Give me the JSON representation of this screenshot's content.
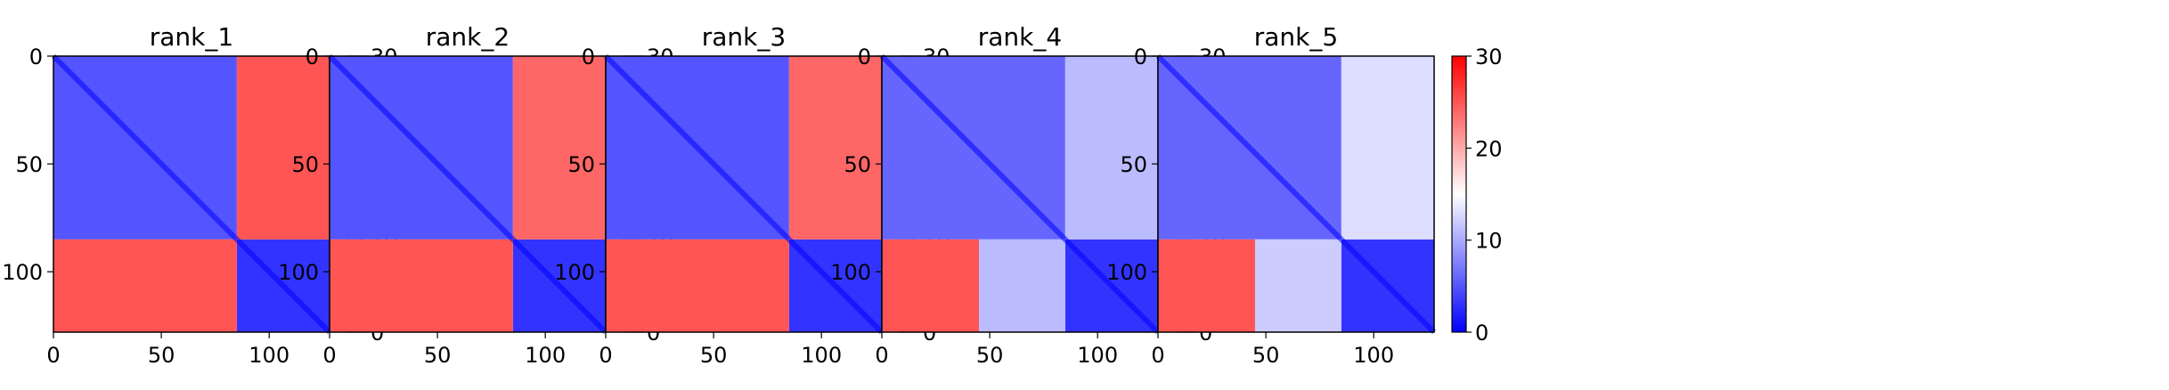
{
  "chart_data": [
    {
      "type": "heatmap",
      "title": "rank_1",
      "matrix_size": 128,
      "x_ticks": [
        0,
        50,
        100
      ],
      "y_ticks": [
        0,
        50,
        100
      ],
      "colorbar": {
        "ticks": [
          0,
          10,
          20,
          30
        ],
        "range": [
          0,
          30
        ],
        "colormap": "bwr"
      },
      "blocks": [
        {
          "rows": [
            0,
            85
          ],
          "cols": [
            0,
            85
          ],
          "approx_value": 5
        },
        {
          "rows": [
            85,
            128
          ],
          "cols": [
            85,
            128
          ],
          "approx_value": 3
        },
        {
          "rows": [
            0,
            85
          ],
          "cols": [
            85,
            128
          ],
          "approx_value": 25
        },
        {
          "rows": [
            85,
            128
          ],
          "cols": [
            0,
            85
          ],
          "approx_value": 25
        }
      ]
    },
    {
      "type": "heatmap",
      "title": "rank_2",
      "matrix_size": 128,
      "x_ticks": [
        0,
        50,
        100
      ],
      "y_ticks": [
        0,
        50,
        100
      ],
      "colorbar": {
        "ticks": [
          0,
          10,
          20,
          30
        ],
        "range": [
          0,
          30
        ],
        "colormap": "bwr"
      },
      "blocks": [
        {
          "rows": [
            0,
            85
          ],
          "cols": [
            0,
            85
          ],
          "approx_value": 5
        },
        {
          "rows": [
            85,
            128
          ],
          "cols": [
            85,
            128
          ],
          "approx_value": 3
        },
        {
          "rows": [
            0,
            85
          ],
          "cols": [
            85,
            128
          ],
          "approx_value": 24
        },
        {
          "rows": [
            85,
            128
          ],
          "cols": [
            0,
            85
          ],
          "approx_value": 25
        }
      ]
    },
    {
      "type": "heatmap",
      "title": "rank_3",
      "matrix_size": 128,
      "x_ticks": [
        0,
        50,
        100
      ],
      "y_ticks": [
        0,
        50,
        100
      ],
      "colorbar": {
        "ticks": [
          0,
          10,
          20,
          30
        ],
        "range": [
          0,
          30
        ],
        "colormap": "bwr"
      },
      "blocks": [
        {
          "rows": [
            0,
            85
          ],
          "cols": [
            0,
            85
          ],
          "approx_value": 5
        },
        {
          "rows": [
            85,
            128
          ],
          "cols": [
            85,
            128
          ],
          "approx_value": 3
        },
        {
          "rows": [
            0,
            85
          ],
          "cols": [
            85,
            128
          ],
          "approx_value": 24
        },
        {
          "rows": [
            85,
            128
          ],
          "cols": [
            0,
            85
          ],
          "approx_value": 25
        }
      ]
    },
    {
      "type": "heatmap",
      "title": "rank_4",
      "matrix_size": 128,
      "x_ticks": [
        0,
        50,
        100
      ],
      "y_ticks": [
        0,
        50,
        100
      ],
      "colorbar": {
        "ticks": [
          0,
          10,
          20,
          30
        ],
        "range": [
          0,
          30
        ],
        "colormap": "bwr"
      },
      "blocks": [
        {
          "rows": [
            0,
            85
          ],
          "cols": [
            0,
            85
          ],
          "approx_value": 6
        },
        {
          "rows": [
            85,
            128
          ],
          "cols": [
            85,
            128
          ],
          "approx_value": 3
        },
        {
          "rows": [
            0,
            85
          ],
          "cols": [
            85,
            128
          ],
          "approx_value": 11
        },
        {
          "rows": [
            85,
            128
          ],
          "cols": [
            0,
            45
          ],
          "approx_value": 25
        },
        {
          "rows": [
            85,
            128
          ],
          "cols": [
            45,
            85
          ],
          "approx_value": 11
        }
      ]
    },
    {
      "type": "heatmap",
      "title": "rank_5",
      "matrix_size": 128,
      "x_ticks": [
        0,
        50,
        100
      ],
      "y_ticks": [
        0,
        50,
        100
      ],
      "colorbar": {
        "ticks": [
          0,
          10,
          20,
          30
        ],
        "range": [
          0,
          30
        ],
        "colormap": "bwr"
      },
      "blocks": [
        {
          "rows": [
            0,
            85
          ],
          "cols": [
            0,
            85
          ],
          "approx_value": 6
        },
        {
          "rows": [
            85,
            128
          ],
          "cols": [
            85,
            128
          ],
          "approx_value": 3
        },
        {
          "rows": [
            0,
            85
          ],
          "cols": [
            85,
            128
          ],
          "approx_value": 13
        },
        {
          "rows": [
            85,
            128
          ],
          "cols": [
            0,
            45
          ],
          "approx_value": 25
        },
        {
          "rows": [
            85,
            128
          ],
          "cols": [
            45,
            85
          ],
          "approx_value": 12
        }
      ]
    }
  ]
}
